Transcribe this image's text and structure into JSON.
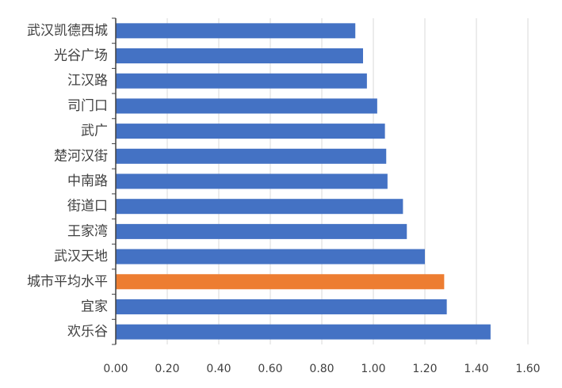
{
  "chart_data": {
    "type": "bar",
    "orientation": "horizontal",
    "categories": [
      "武汉凯德西城",
      "光谷广场",
      "江汉路",
      "司门口",
      "武广",
      "楚河汉街",
      "中南路",
      "街道口",
      "王家湾",
      "武汉天地",
      "城市平均水平",
      "宜家",
      "欢乐谷"
    ],
    "values": [
      0.93,
      0.96,
      0.975,
      1.015,
      1.045,
      1.05,
      1.055,
      1.115,
      1.13,
      1.2,
      1.275,
      1.285,
      1.455
    ],
    "highlight_index": 10,
    "xlim": [
      0,
      1.6
    ],
    "x_ticks": [
      "0.00",
      "0.20",
      "0.40",
      "0.60",
      "0.80",
      "1.00",
      "1.20",
      "1.40",
      "1.60"
    ],
    "title": "",
    "xlabel": "",
    "ylabel": "",
    "grid": "vertical",
    "legend": "none",
    "colors": {
      "bar": "#4472C4",
      "highlight": "#ED7D31"
    }
  }
}
